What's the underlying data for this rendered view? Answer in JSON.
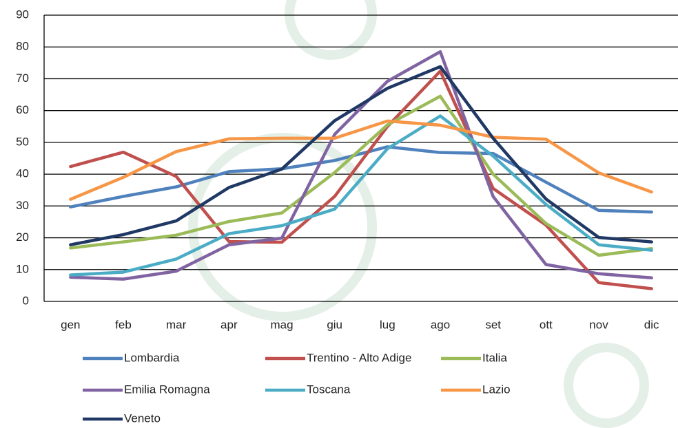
{
  "chart_data": {
    "type": "line",
    "categories": [
      "gen",
      "feb",
      "mar",
      "apr",
      "mag",
      "giu",
      "lug",
      "ago",
      "set",
      "ott",
      "nov",
      "dic"
    ],
    "series": [
      {
        "name": "Lombardia",
        "color": "#4f81bd",
        "values": [
          29.7,
          33,
          36,
          40.8,
          41.7,
          44.3,
          48.6,
          46.8,
          46.5,
          37.5,
          28.6,
          28.1
        ]
      },
      {
        "name": "Trentino - Alto Adige",
        "color": "#c0504d",
        "values": [
          42.4,
          46.9,
          39.3,
          18.8,
          18.6,
          33,
          55,
          72.4,
          35.5,
          24,
          5.9,
          4
        ]
      },
      {
        "name": "Italia",
        "color": "#9bbb59",
        "values": [
          16.8,
          18.7,
          20.8,
          25.1,
          27.8,
          40.5,
          55.5,
          64.5,
          40,
          24.5,
          14.5,
          16.6
        ]
      },
      {
        "name": "Emilia Romagna",
        "color": "#8064a2",
        "values": [
          7.6,
          7,
          9.5,
          17.8,
          19.9,
          52.5,
          69.2,
          78.5,
          33,
          11.6,
          8.7,
          7.4
        ]
      },
      {
        "name": "Toscana",
        "color": "#4bacc6",
        "values": [
          8.3,
          9.2,
          13.3,
          21.3,
          23.8,
          29,
          48,
          58.3,
          45.7,
          30.5,
          17.8,
          16.1
        ]
      },
      {
        "name": "Lazio",
        "color": "#f79646",
        "values": [
          32.1,
          39,
          47.1,
          51.1,
          51.3,
          51.3,
          56.7,
          55.4,
          51.6,
          51,
          40.4,
          34.4
        ]
      },
      {
        "name": "Veneto",
        "color": "#1f3864",
        "values": [
          17.8,
          21,
          25.3,
          35.8,
          41.6,
          56.8,
          67,
          73.8,
          51.3,
          32.2,
          20.1,
          18.7
        ]
      }
    ],
    "ylim": [
      0,
      90
    ],
    "yticks": [
      0,
      10,
      20,
      30,
      40,
      50,
      60,
      70,
      80,
      90
    ],
    "grid": true
  }
}
